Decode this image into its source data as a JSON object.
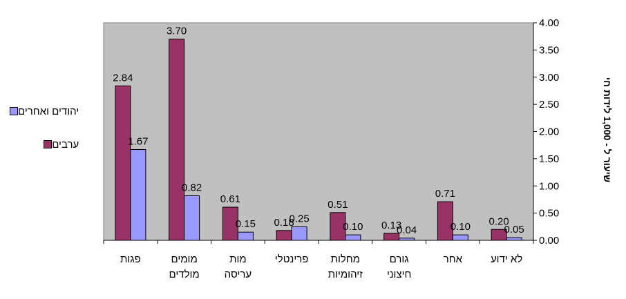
{
  "chart_data": {
    "type": "bar",
    "categories": [
      "פגות",
      "מומים מולדים",
      "מות עריסה",
      "פרינטלי",
      "מחלות זיהומיות",
      "גורם חיצוני",
      "אחר",
      "לא ידוע"
    ],
    "category_lines": [
      [
        "פגות"
      ],
      [
        "מומים",
        "מולדים"
      ],
      [
        "מות",
        "עריסה"
      ],
      [
        "פרינטלי"
      ],
      [
        "מחלות",
        "זיהומיות"
      ],
      [
        "גורם",
        "חיצוני"
      ],
      [
        "אחר"
      ],
      [
        "לא ידוע"
      ]
    ],
    "series": [
      {
        "name": "ערבים",
        "color": "#993366",
        "values": [
          2.84,
          3.7,
          0.61,
          0.18,
          0.51,
          0.13,
          0.71,
          0.2
        ],
        "labels": [
          "2.84",
          "3.70",
          "0.61",
          "0.18",
          "0.51",
          "0.13",
          "0.71",
          "0.20"
        ]
      },
      {
        "name": "יהודים ואחרים",
        "color": "#9999ff",
        "values": [
          1.67,
          0.82,
          0.15,
          0.25,
          0.1,
          0.04,
          0.1,
          0.05
        ],
        "labels": [
          "1.67",
          "0.82",
          "0.15",
          "0.25",
          "0.10",
          "0.04",
          "0.10",
          "0.05"
        ]
      }
    ],
    "ylabel": "שיעור ל - 1,000 לידות חי",
    "ylim": [
      0,
      4
    ],
    "yticks": [
      "0.00",
      "0.50",
      "1.00",
      "1.50",
      "2.00",
      "2.50",
      "3.00",
      "3.50",
      "4.00"
    ],
    "y_axis_side": "right",
    "category_order": "right-to-left",
    "plot_background": "#c0c0c0",
    "grid": false,
    "legend_position": "left",
    "legend_order": [
      "יהודים ואחרים",
      "ערבים"
    ]
  }
}
